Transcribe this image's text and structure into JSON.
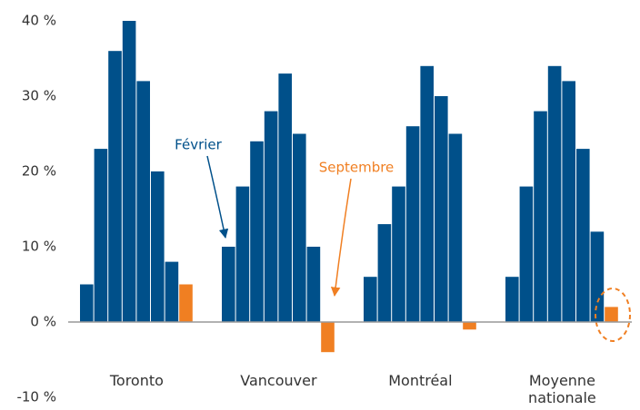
{
  "chart_data": {
    "type": "bar",
    "categories": [
      "Toronto",
      "Vancouver",
      "Montréal",
      "Moyenne nationale"
    ],
    "series": [
      {
        "name": "Février",
        "color": "#00508a",
        "values": [
          5,
          10,
          6,
          6
        ]
      },
      {
        "color": "#00508a",
        "values": [
          23,
          18,
          13,
          18
        ]
      },
      {
        "color": "#00508a",
        "values": [
          36,
          24,
          18,
          28
        ]
      },
      {
        "color": "#00508a",
        "values": [
          40,
          28,
          26,
          34
        ]
      },
      {
        "color": "#00508a",
        "values": [
          32,
          33,
          34,
          32
        ]
      },
      {
        "color": "#00508a",
        "values": [
          20,
          25,
          30,
          23
        ]
      },
      {
        "color": "#00508a",
        "values": [
          8,
          10,
          25,
          12
        ]
      },
      {
        "name": "Septembre",
        "color": "#f07f22",
        "values": [
          5,
          -4,
          -1,
          2
        ]
      }
    ],
    "ylim": [
      -10,
      40
    ],
    "yticks": [
      {
        "value": -10,
        "label": "-10 %"
      },
      {
        "value": 0,
        "label": "0 %"
      },
      {
        "value": 10,
        "label": "10 %"
      },
      {
        "value": 20,
        "label": "20 %"
      },
      {
        "value": 30,
        "label": "30 %"
      },
      {
        "value": 40,
        "label": "40 %"
      }
    ],
    "grid": false
  }
}
